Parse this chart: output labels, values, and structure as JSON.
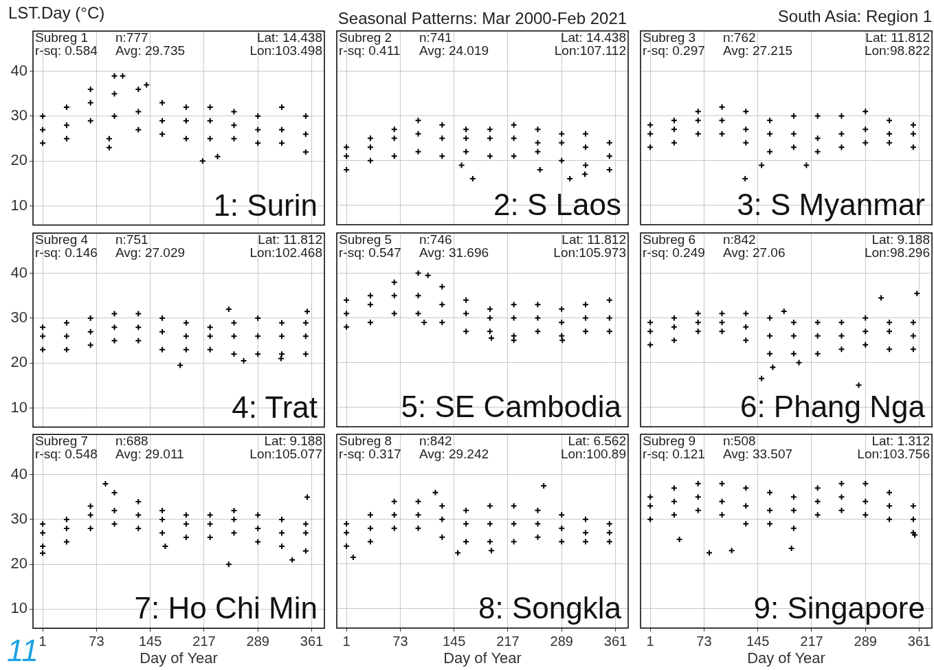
{
  "chart_data": [
    {
      "type": "scatter",
      "ylabel": "LST.Day (°C)",
      "marker": "cross",
      "grid": true,
      "tick_labels": "y",
      "xlim": [
        -12,
        378
      ],
      "ylim": [
        5.7,
        49
      ],
      "xticks": [
        1,
        73,
        145,
        217,
        289,
        361
      ],
      "yticks": [
        10,
        20,
        30,
        40
      ],
      "annotations": [
        "Subreg 1",
        "n:777",
        "Lat: 14.438",
        "r-sq: 0.584",
        "Avg: 29.735",
        "Lon:103.498",
        "1: Surin"
      ],
      "series": [
        {
          "color": "#000000",
          "x": [
            1,
            33,
            65,
            97,
            129,
            161,
            193,
            225,
            257,
            289,
            321,
            353,
            1,
            33,
            65,
            97,
            129,
            161,
            193,
            225,
            257,
            289,
            321,
            353,
            1,
            33,
            65,
            97,
            129,
            161,
            193,
            225,
            257,
            289,
            321,
            353,
            90,
            90,
            215,
            235,
            140,
            108
          ],
          "values": [
            24,
            25,
            29,
            30,
            27,
            26,
            25,
            25,
            25,
            24,
            24,
            22,
            27,
            28,
            33,
            35,
            31,
            29,
            29,
            29,
            28,
            27,
            27,
            26,
            30,
            32,
            36,
            39,
            36,
            33,
            32,
            32,
            31,
            30,
            32,
            30,
            23,
            25,
            20,
            21,
            37,
            39
          ]
        }
      ]
    },
    {
      "type": "scatter",
      "title": "Seasonal Patterns: Mar 2000-Feb 2021",
      "marker": "cross",
      "grid": true,
      "tick_labels": false,
      "xlim": [
        -12,
        378
      ],
      "ylim": [
        5.7,
        49
      ],
      "xticks": [
        1,
        73,
        145,
        217,
        289,
        361
      ],
      "yticks": [
        10,
        20,
        30,
        40
      ],
      "annotations": [
        "Subreg 2",
        "n:741",
        "Lat: 14.438",
        "r-sq: 0.411",
        "Avg: 24.019",
        "Lon:107.112",
        "2: S Laos"
      ],
      "series": [
        {
          "color": "#000000",
          "x": [
            1,
            33,
            65,
            97,
            129,
            161,
            193,
            225,
            257,
            289,
            321,
            353,
            1,
            33,
            65,
            97,
            129,
            161,
            193,
            225,
            257,
            289,
            321,
            353,
            1,
            33,
            65,
            97,
            129,
            161,
            193,
            225,
            257,
            289,
            321,
            353,
            170,
            155,
            260,
            320,
            300
          ],
          "values": [
            18,
            20,
            21,
            22,
            21,
            22,
            21,
            21,
            22,
            20,
            19,
            18,
            21,
            23,
            25,
            26,
            25,
            25,
            25,
            25,
            24,
            24,
            23,
            21,
            23,
            25,
            27,
            29,
            28,
            27,
            27,
            28,
            27,
            26,
            26,
            24,
            16,
            19,
            18,
            17,
            16
          ]
        }
      ]
    },
    {
      "type": "scatter",
      "subtitle": "South Asia: Region 1",
      "marker": "cross",
      "grid": true,
      "tick_labels": false,
      "xlim": [
        -12,
        378
      ],
      "ylim": [
        5.7,
        49
      ],
      "xticks": [
        1,
        73,
        145,
        217,
        289,
        361
      ],
      "yticks": [
        10,
        20,
        30,
        40
      ],
      "annotations": [
        "Subreg 3",
        "n:762",
        "Lat: 11.812",
        "r-sq: 0.297",
        "Avg: 27.215",
        "Lon:98.822",
        "3: S Myanmar"
      ],
      "series": [
        {
          "color": "#000000",
          "x": [
            1,
            33,
            65,
            97,
            129,
            161,
            193,
            225,
            257,
            289,
            321,
            353,
            1,
            33,
            65,
            97,
            129,
            161,
            193,
            225,
            257,
            289,
            321,
            353,
            1,
            33,
            65,
            97,
            129,
            161,
            193,
            225,
            257,
            289,
            321,
            353,
            150,
            210,
            128
          ],
          "values": [
            23,
            24,
            26,
            26,
            24,
            22,
            23,
            22,
            23,
            24,
            24,
            23,
            26,
            27,
            29,
            29,
            27,
            26,
            26,
            25,
            26,
            27,
            26,
            26,
            28,
            29,
            31,
            32,
            31,
            29,
            30,
            30,
            30,
            31,
            29,
            28,
            19,
            19,
            16
          ]
        }
      ]
    },
    {
      "type": "scatter",
      "marker": "cross",
      "grid": true,
      "tick_labels": "y",
      "xlim": [
        -12,
        378
      ],
      "ylim": [
        5.7,
        49
      ],
      "xticks": [
        1,
        73,
        145,
        217,
        289,
        361
      ],
      "yticks": [
        10,
        20,
        30,
        40
      ],
      "annotations": [
        "Subreg 4",
        "n:751",
        "Lat: 11.812",
        "r-sq: 0.146",
        "Avg: 27.029",
        "Lon:102.468",
        "4: Trat"
      ],
      "series": [
        {
          "color": "#000000",
          "x": [
            1,
            33,
            65,
            97,
            129,
            161,
            193,
            225,
            257,
            289,
            321,
            353,
            1,
            33,
            65,
            97,
            129,
            161,
            193,
            225,
            257,
            289,
            321,
            353,
            1,
            33,
            65,
            97,
            129,
            161,
            193,
            225,
            257,
            289,
            321,
            353,
            185,
            270,
            320,
            355,
            250
          ],
          "values": [
            23,
            23,
            24,
            25,
            25,
            23,
            23,
            23,
            22,
            22,
            22,
            22,
            26,
            26,
            27,
            28,
            28,
            27,
            26,
            26,
            26,
            26,
            26,
            26,
            28,
            29,
            30,
            31,
            31,
            30,
            29,
            28,
            29,
            30,
            29,
            29,
            19.5,
            20.5,
            21,
            31.5,
            32
          ]
        }
      ]
    },
    {
      "type": "scatter",
      "marker": "cross",
      "grid": true,
      "tick_labels": false,
      "xlim": [
        -12,
        378
      ],
      "ylim": [
        5.7,
        49
      ],
      "xticks": [
        1,
        73,
        145,
        217,
        289,
        361
      ],
      "yticks": [
        10,
        20,
        30,
        40
      ],
      "annotations": [
        "Subreg 5",
        "n:746",
        "Lat: 11.812",
        "r-sq: 0.547",
        "Avg: 31.696",
        "Lon:105.973",
        "5: SE Cambodia"
      ],
      "series": [
        {
          "color": "#000000",
          "x": [
            1,
            33,
            65,
            97,
            129,
            161,
            193,
            225,
            257,
            289,
            321,
            353,
            1,
            33,
            65,
            97,
            129,
            161,
            193,
            225,
            257,
            289,
            321,
            353,
            1,
            33,
            65,
            97,
            129,
            161,
            193,
            225,
            257,
            289,
            321,
            353,
            110,
            105,
            225,
            195,
            290
          ],
          "values": [
            28,
            29,
            31,
            31,
            29,
            27,
            27,
            26,
            27,
            26,
            27,
            27,
            31,
            33,
            35,
            35,
            33,
            31,
            30,
            30,
            30,
            29,
            30,
            30,
            34,
            35,
            38,
            40,
            37,
            34,
            32,
            33,
            33,
            32,
            33,
            34,
            39.5,
            29,
            25,
            25.5,
            25
          ]
        }
      ]
    },
    {
      "type": "scatter",
      "marker": "cross",
      "grid": true,
      "tick_labels": false,
      "xlim": [
        -12,
        378
      ],
      "ylim": [
        5.7,
        49
      ],
      "xticks": [
        1,
        73,
        145,
        217,
        289,
        361
      ],
      "yticks": [
        10,
        20,
        30,
        40
      ],
      "annotations": [
        "Subreg 6",
        "n:842",
        "Lat: 9.188",
        "r-sq: 0.249",
        "Avg: 27.06",
        "Lon:98.296",
        "6: Phang Nga"
      ],
      "series": [
        {
          "color": "#000000",
          "x": [
            1,
            33,
            65,
            97,
            129,
            161,
            193,
            225,
            257,
            289,
            321,
            353,
            1,
            33,
            65,
            97,
            129,
            161,
            193,
            225,
            257,
            289,
            321,
            353,
            1,
            33,
            65,
            97,
            129,
            161,
            193,
            225,
            257,
            289,
            321,
            353,
            150,
            165,
            200,
            280,
            310,
            358,
            180
          ],
          "values": [
            24,
            25,
            27,
            27,
            25,
            22,
            22,
            22,
            23,
            24,
            23,
            23,
            27,
            28,
            29,
            29,
            28,
            26,
            26,
            26,
            26,
            27,
            27,
            26,
            29,
            30,
            31,
            31,
            31,
            30,
            29,
            29,
            29,
            30,
            29,
            29,
            16.5,
            19,
            20,
            15,
            34.5,
            35.5,
            31.5
          ]
        }
      ]
    },
    {
      "type": "scatter",
      "xlabel": "Day of Year",
      "marker": "cross",
      "grid": true,
      "xlim": [
        -12,
        378
      ],
      "ylim": [
        5.7,
        49
      ],
      "xticks": [
        1,
        73,
        145,
        217,
        289,
        361
      ],
      "yticks": [
        10,
        20,
        30,
        40
      ],
      "annotations": [
        "Subreg 7",
        "n:688",
        "Lat: 9.188",
        "r-sq: 0.548",
        "Avg: 29.011",
        "Lon:105.077",
        "7: Ho Chi Min",
        "11"
      ],
      "series": [
        {
          "color": "#000000",
          "x": [
            1,
            33,
            65,
            97,
            129,
            161,
            193,
            225,
            257,
            289,
            321,
            353,
            1,
            33,
            65,
            97,
            129,
            161,
            193,
            225,
            257,
            289,
            321,
            353,
            1,
            33,
            65,
            97,
            129,
            161,
            193,
            225,
            257,
            289,
            321,
            353,
            1,
            85,
            250,
            355,
            165,
            335
          ],
          "values": [
            24,
            25,
            28,
            29,
            28,
            27,
            26,
            26,
            27,
            25,
            24,
            23,
            27,
            28,
            31,
            32,
            31,
            30,
            29,
            29,
            30,
            28,
            27,
            27,
            29,
            30,
            33,
            36,
            34,
            32,
            31,
            31,
            32,
            31,
            30,
            29,
            22.5,
            38,
            20,
            35,
            24,
            21
          ]
        }
      ]
    },
    {
      "type": "scatter",
      "xlabel": "Day of Year",
      "marker": "cross",
      "grid": true,
      "tick_labels": "x",
      "xlim": [
        -12,
        378
      ],
      "ylim": [
        5.7,
        49
      ],
      "xticks": [
        1,
        73,
        145,
        217,
        289,
        361
      ],
      "yticks": [
        10,
        20,
        30,
        40
      ],
      "annotations": [
        "Subreg 8",
        "n:842",
        "Lat: 6.562",
        "r-sq: 0.317",
        "Avg: 29.242",
        "Lon:100.89",
        "8: Songkla"
      ],
      "series": [
        {
          "color": "#000000",
          "x": [
            1,
            33,
            65,
            97,
            129,
            161,
            193,
            225,
            257,
            289,
            321,
            353,
            1,
            33,
            65,
            97,
            129,
            161,
            193,
            225,
            257,
            289,
            321,
            353,
            1,
            33,
            65,
            97,
            129,
            161,
            193,
            225,
            257,
            289,
            321,
            353,
            10,
            150,
            195,
            265,
            120
          ],
          "values": [
            24,
            25,
            28,
            28,
            26,
            25,
            25,
            25,
            26,
            25,
            25,
            25,
            27,
            28,
            31,
            31,
            30,
            29,
            29,
            29,
            29,
            28,
            27,
            27,
            29,
            31,
            34,
            34,
            33,
            32,
            33,
            33,
            32,
            31,
            30,
            29,
            21.5,
            22.5,
            23,
            37.5,
            36
          ]
        }
      ]
    },
    {
      "type": "scatter",
      "xlabel": "Day of Year",
      "marker": "cross",
      "grid": true,
      "tick_labels": "x",
      "xlim": [
        -12,
        378
      ],
      "ylim": [
        5.7,
        49
      ],
      "xticks": [
        1,
        73,
        145,
        217,
        289,
        361
      ],
      "yticks": [
        10,
        20,
        30,
        40
      ],
      "annotations": [
        "Subreg 9",
        "n:508",
        "Lat: 1.312",
        "r-sq: 0.121",
        "Avg: 33.507",
        "Lon:103.756",
        "9: Singapore"
      ],
      "series": [
        {
          "color": "#000000",
          "x": [
            1,
            33,
            65,
            97,
            129,
            161,
            193,
            225,
            257,
            289,
            321,
            353,
            1,
            33,
            65,
            97,
            129,
            161,
            193,
            225,
            257,
            289,
            321,
            353,
            1,
            33,
            65,
            97,
            129,
            161,
            193,
            225,
            257,
            289,
            321,
            353,
            80,
            110,
            190,
            40,
            355
          ],
          "values": [
            30,
            31,
            32,
            31,
            29,
            29,
            28,
            31,
            32,
            31,
            30,
            27,
            33,
            34,
            35,
            34,
            33,
            32,
            32,
            34,
            35,
            34,
            33,
            30,
            35,
            37,
            38,
            38,
            37,
            36,
            35,
            37,
            38,
            38,
            36,
            33,
            22.5,
            23,
            23.5,
            25.5,
            26.5
          ]
        }
      ]
    }
  ]
}
